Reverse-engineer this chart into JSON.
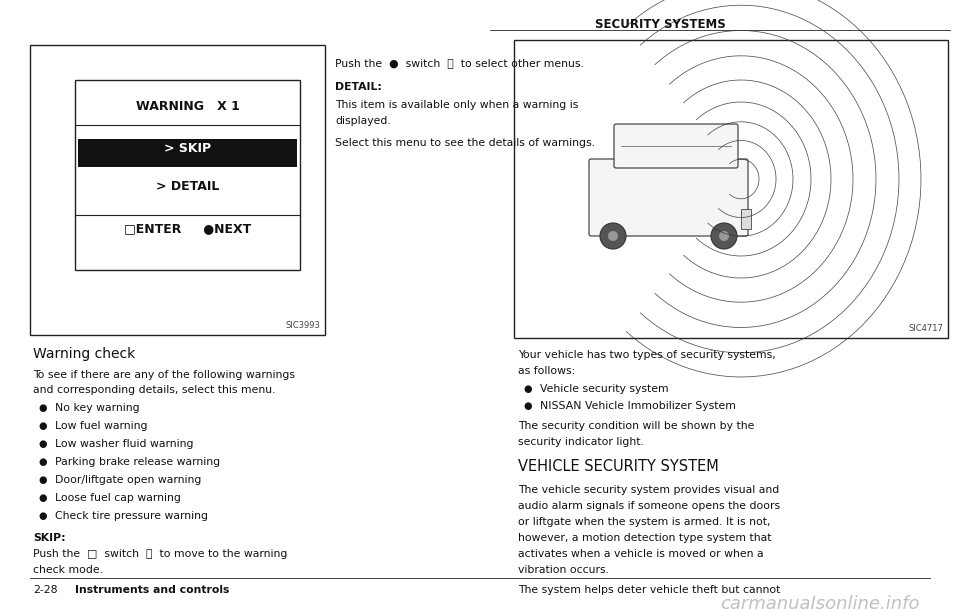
{
  "bg_color": "#ffffff",
  "page_width": 9.6,
  "page_height": 6.11,
  "dpi": 100,
  "header_text": "SECURITY SYSTEMS",
  "screen_label": "SIC3993",
  "right_label": "SIC4717",
  "warning_text": "WARNING   X 1",
  "skip_text": "> SKIP",
  "detail_text": "> DETAIL",
  "enter_text": "□ENTER     ●NEXT",
  "section_title": "Warning check",
  "section_body1": "To see if there are any of the following warnings",
  "section_body2": "and corresponding details, select this menu.",
  "bullets": [
    "No key warning",
    "Low fuel warning",
    "Low washer fluid warning",
    "Parking brake release warning",
    "Door/liftgate open warning",
    "Loose fuel cap warning",
    "Check tire pressure warning"
  ],
  "skip_label": "SKIP:",
  "skip_body1": "Push the  □  switch  Ⓐ  to move to the warning",
  "skip_body2": "check mode.",
  "detail_label": "DETAIL:",
  "detail_body1": "This item is available only when a warning is",
  "detail_body2": "displayed.",
  "detail_body3": "Select this menu to see the details of warnings.",
  "push_line": "Push the  ●  switch  Ⓑ  to select other menus.",
  "sec_body1a": "Your vehicle has two types of security systems,",
  "sec_body1b": "as follows:",
  "sec_bullets": [
    "Vehicle security system",
    "NISSAN Vehicle Immobilizer System"
  ],
  "sec_body2a": "The security condition will be shown by the",
  "sec_body2b": "security indicator light.",
  "sec_subtitle": "VEHICLE SECURITY SYSTEM",
  "sec_body3": [
    "The vehicle security system provides visual and",
    "audio alarm signals if someone opens the doors",
    "or liftgate when the system is armed. It is not,",
    "however, a motion detection type system that",
    "activates when a vehicle is moved or when a",
    "vibration occurs."
  ],
  "sec_body4": "The system helps deter vehicle theft but cannot",
  "footer_left": "2-28",
  "footer_right_bold": "Instruments and controls",
  "watermark": "carmanuaIsonline.info"
}
